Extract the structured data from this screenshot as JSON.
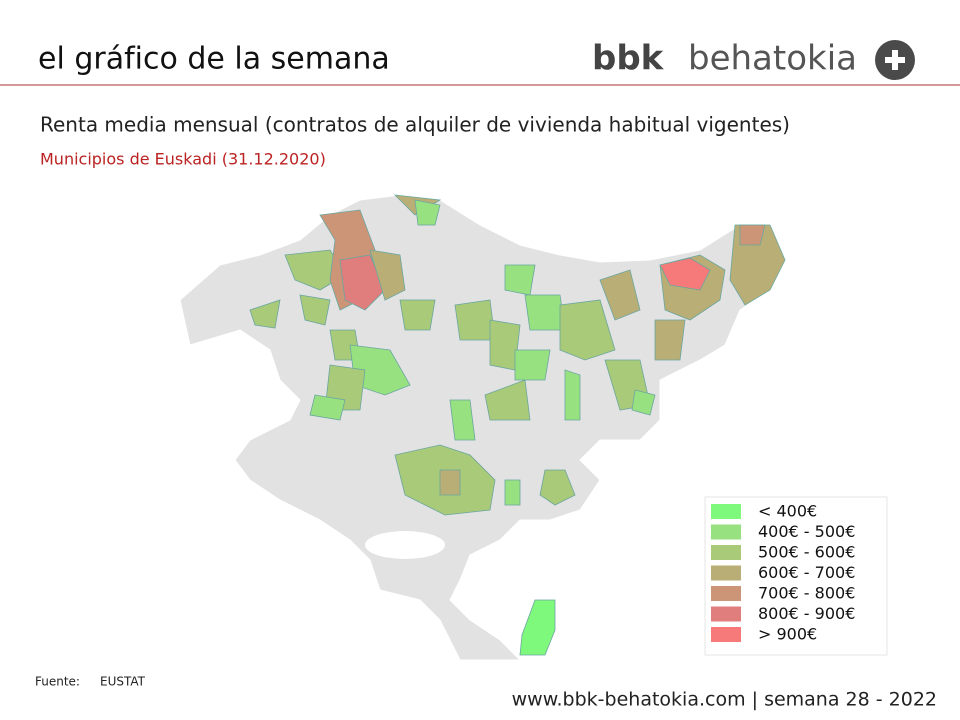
{
  "header": {
    "title": "el gráfico de la semana",
    "logo": {
      "brand": "bbk",
      "name": "behatokia"
    }
  },
  "subtitle": "Renta media mensual (contratos de alquiler de vivienda habitual vigentes)",
  "caption": "Municipios de Euskadi (31.12.2020)",
  "legend": {
    "items": [
      {
        "label": "< 400€",
        "color": "#7ff97c"
      },
      {
        "label": "400€ - 500€",
        "color": "#98e181"
      },
      {
        "label": "500€ - 600€",
        "color": "#a9ca78"
      },
      {
        "label": "600€ - 700€",
        "color": "#b9ae76"
      },
      {
        "label": "700€ - 800€",
        "color": "#cc9577"
      },
      {
        "label": "800€ - 900€",
        "color": "#df7e7c"
      },
      {
        "label": "> 900€",
        "color": "#f77a7a"
      }
    ]
  },
  "source": {
    "label": "Fuente:",
    "value": "EUSTAT"
  },
  "footer": "www.bbk-behatokia.com | semana 28 - 2022"
}
